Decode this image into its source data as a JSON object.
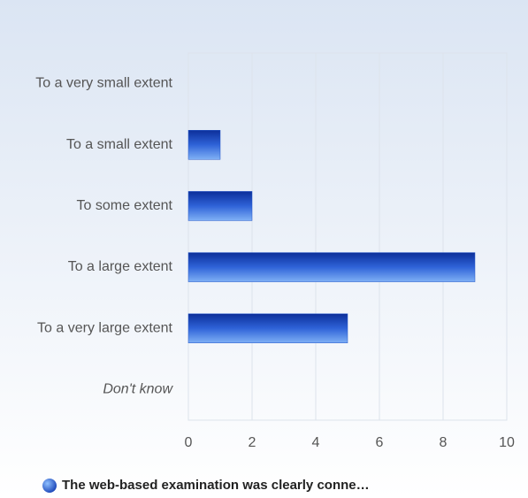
{
  "chart_data": {
    "type": "bar",
    "orientation": "horizontal",
    "categories": [
      "To a very small extent",
      "To a small extent",
      "To some extent",
      "To a large extent",
      "To a very large extent",
      "Don't know"
    ],
    "italic_categories": [
      5
    ],
    "series": [
      {
        "name": "The web-based examination was clearly conne…",
        "color": "#2456c8",
        "values": [
          0,
          1,
          2,
          9,
          5,
          0
        ]
      }
    ],
    "xlim": [
      0,
      10
    ],
    "xticks": [
      0,
      2,
      4,
      6,
      8,
      10
    ],
    "grid": true,
    "legend": "bottom"
  }
}
